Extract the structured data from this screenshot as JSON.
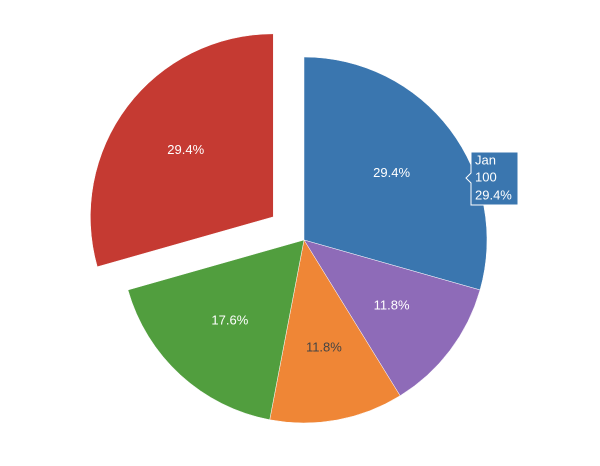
{
  "chart_data": {
    "type": "pie",
    "categories": [
      "Jan",
      null,
      null,
      null,
      null
    ],
    "values": [
      29.4,
      11.8,
      11.8,
      17.6,
      29.4
    ],
    "value_labels": [
      "29.4%",
      "11.8%",
      "11.8%",
      "17.6%",
      "29.4%"
    ],
    "colors": [
      "#3a76af",
      "#8e6bb8",
      "#ef8636",
      "#519e3e",
      "#c53a32"
    ],
    "pull": [
      0,
      0,
      0,
      0,
      0.21
    ],
    "tooltip_value": 100
  }
}
